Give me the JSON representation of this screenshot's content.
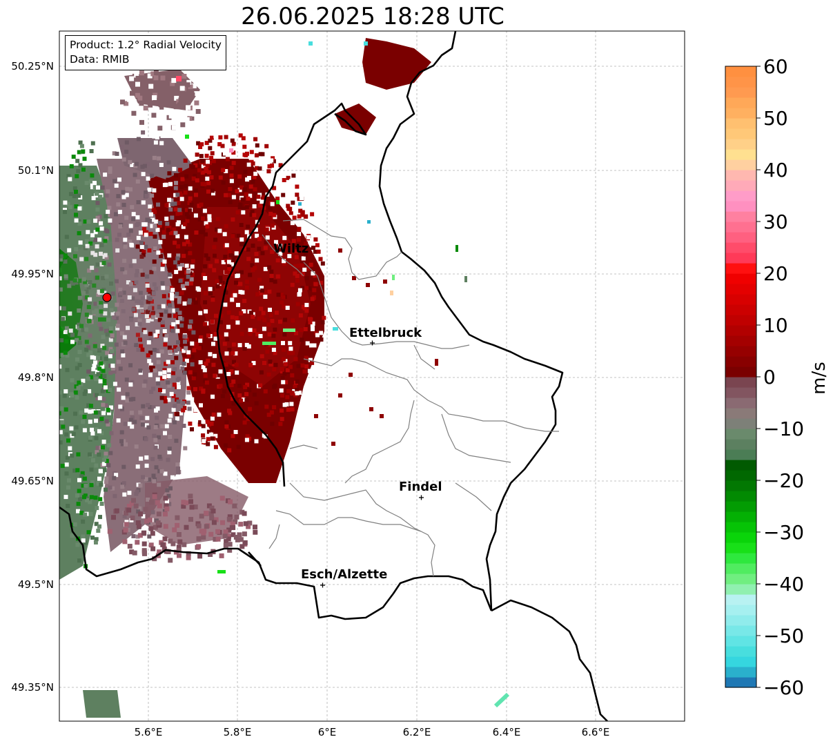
{
  "title": "26.06.2025 18:28 UTC",
  "info": {
    "product": "Product: 1.2° Radial Velocity",
    "data": "Data: RMIB"
  },
  "axes": {
    "lat_ticks": [
      "50.25°N",
      "50.1°N",
      "49.95°N",
      "49.8°N",
      "49.65°N",
      "49.5°N",
      "49.35°N"
    ],
    "lon_ticks": [
      "5.6°E",
      "5.8°E",
      "6°E",
      "6.2°E",
      "6.4°E",
      "6.6°E"
    ]
  },
  "cities": [
    {
      "name": "Wiltz"
    },
    {
      "name": "Ettelbruck"
    },
    {
      "name": "Findel"
    },
    {
      "name": "Esch/Alzette"
    }
  ],
  "colorbar": {
    "unit": "m/s",
    "ticks": [
      "60",
      "50",
      "40",
      "30",
      "20",
      "10",
      "0",
      "−10",
      "−20",
      "−30",
      "−40",
      "−50",
      "−60"
    ],
    "range": [
      -60,
      60
    ],
    "colors": [
      "#1f78b4",
      "#2ab0cc",
      "#35d6df",
      "#48dede",
      "#60e4e4",
      "#78e8e8",
      "#90ecec",
      "#a6f0f0",
      "#b8f2f2",
      "#90f0b0",
      "#70ee80",
      "#50ec60",
      "#2ee83e",
      "#18e018",
      "#0ad40a",
      "#06c306",
      "#04b004",
      "#039c03",
      "#028a02",
      "#027802",
      "#016801",
      "#015a01",
      "#4b7d55",
      "#5c8060",
      "#6a8a6c",
      "#7d8078",
      "#8a7a78",
      "#8a6a72",
      "#825560",
      "#7a4550",
      "#7a0000",
      "#880000",
      "#960000",
      "#a40000",
      "#b20000",
      "#c00000",
      "#cc0000",
      "#d80000",
      "#e40000",
      "#f00000",
      "#ff1010",
      "#ff3a58",
      "#ff4c6a",
      "#ff6080",
      "#ff7090",
      "#ff80a0",
      "#ff90c0",
      "#ff9cc8",
      "#ffaab8",
      "#ffb8b0",
      "#ffd0a0",
      "#ffe090",
      "#ffd088",
      "#ffc878",
      "#ffc070",
      "#ffb060",
      "#ffa858",
      "#ff9a50",
      "#ff9448",
      "#ff9040"
    ]
  },
  "radar_site_color": "#ff0000"
}
